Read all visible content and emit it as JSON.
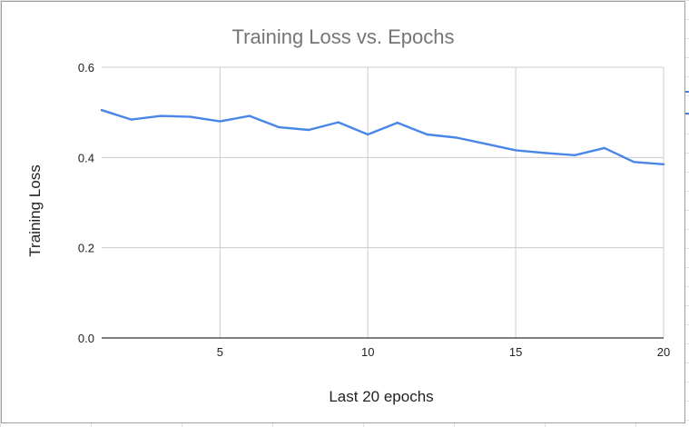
{
  "colors": {
    "series": "#4a86e8",
    "grid": "#cccccc",
    "axis": "#333333",
    "title": "#757575",
    "text": "#222222"
  },
  "chart_data": {
    "type": "line",
    "title": "Training Loss vs. Epochs",
    "xlabel": "Last 20 epochs",
    "ylabel": "Training Loss",
    "xlim": [
      1,
      20
    ],
    "ylim": [
      0,
      0.6
    ],
    "x_ticks": [
      5,
      10,
      15,
      20
    ],
    "y_ticks": [
      0.0,
      0.2,
      0.4,
      0.6
    ],
    "y_tick_labels": [
      "0.0",
      "0.2",
      "0.4",
      "0.6"
    ],
    "grid": true,
    "legend": "none",
    "series": [
      {
        "x": [
          1,
          2,
          3,
          4,
          5,
          6,
          7,
          8,
          9,
          10,
          11,
          12,
          13,
          14,
          15,
          16,
          17,
          18,
          19,
          20
        ],
        "values": [
          0.505,
          0.484,
          0.492,
          0.49,
          0.48,
          0.492,
          0.467,
          0.461,
          0.478,
          0.451,
          0.477,
          0.451,
          0.444,
          0.43,
          0.416,
          0.41,
          0.405,
          0.421,
          0.39,
          0.385
        ]
      }
    ]
  }
}
